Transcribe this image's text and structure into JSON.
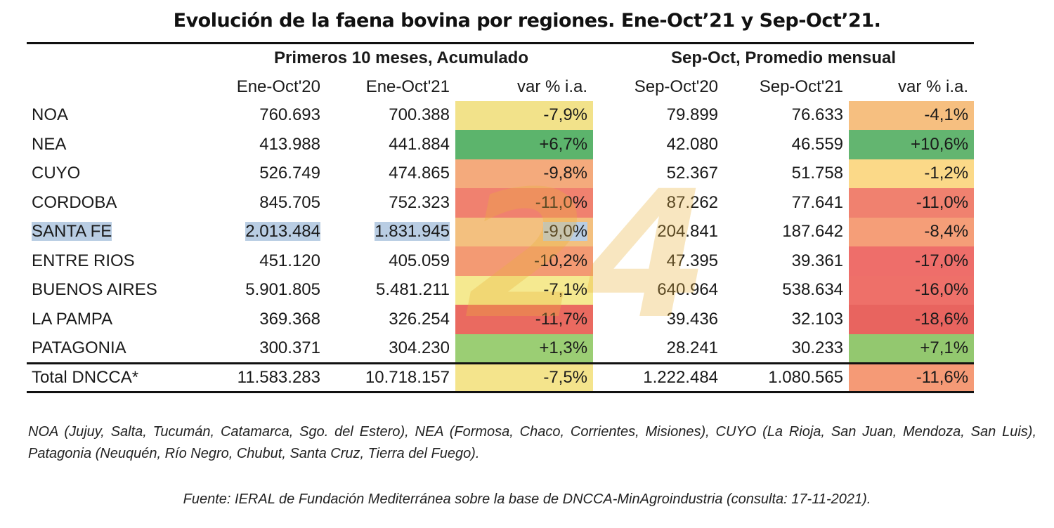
{
  "title": "Evolución de la faena bovina por regiones. Ene-Oct’21 y Sep-Oct’21.",
  "group_headers": {
    "left": "Primeros 10 meses, Acumulado",
    "right": "Sep-Oct, Promedio mensual"
  },
  "column_headers": [
    "Ene-Oct'20",
    "Ene-Oct'21",
    "var % i.a.",
    "Sep-Oct'20",
    "Sep-Oct'21",
    "var % i.a."
  ],
  "rows": [
    {
      "region": "NOA",
      "ene_oct_20": "760.693",
      "ene_oct_21": "700.388",
      "var_acum": "-7,9%",
      "sep_oct_20": "79.899",
      "sep_oct_21": "76.633",
      "var_prom": "-4,1%"
    },
    {
      "region": "NEA",
      "ene_oct_20": "413.988",
      "ene_oct_21": "441.884",
      "var_acum": "+6,7%",
      "sep_oct_20": "42.080",
      "sep_oct_21": "46.559",
      "var_prom": "+10,6%"
    },
    {
      "region": "CUYO",
      "ene_oct_20": "526.749",
      "ene_oct_21": "474.865",
      "var_acum": "-9,8%",
      "sep_oct_20": "52.367",
      "sep_oct_21": "51.758",
      "var_prom": "-1,2%"
    },
    {
      "region": "CORDOBA",
      "ene_oct_20": "845.705",
      "ene_oct_21": "752.323",
      "var_acum": "-11,0%",
      "sep_oct_20": "87.262",
      "sep_oct_21": "77.641",
      "var_prom": "-11,0%"
    },
    {
      "region": "SANTA FE",
      "ene_oct_20": "2.013.484",
      "ene_oct_21": "1.831.945",
      "var_acum": "-9,0%",
      "sep_oct_20": "204.841",
      "sep_oct_21": "187.642",
      "var_prom": "-8,4%"
    },
    {
      "region": "ENTRE RIOS",
      "ene_oct_20": "451.120",
      "ene_oct_21": "405.059",
      "var_acum": "-10,2%",
      "sep_oct_20": "47.395",
      "sep_oct_21": "39.361",
      "var_prom": "-17,0%"
    },
    {
      "region": "BUENOS AIRES",
      "ene_oct_20": "5.901.805",
      "ene_oct_21": "5.481.211",
      "var_acum": "-7,1%",
      "sep_oct_20": "640.964",
      "sep_oct_21": "538.634",
      "var_prom": "-16,0%"
    },
    {
      "region": "LA PAMPA",
      "ene_oct_20": "369.368",
      "ene_oct_21": "326.254",
      "var_acum": "-11,7%",
      "sep_oct_20": "39.436",
      "sep_oct_21": "32.103",
      "var_prom": "-18,6%"
    },
    {
      "region": "PATAGONIA",
      "ene_oct_20": "300.371",
      "ene_oct_21": "304.230",
      "var_acum": "+1,3%",
      "sep_oct_20": "28.241",
      "sep_oct_21": "30.233",
      "var_prom": "+7,1%"
    }
  ],
  "total": {
    "region": "Total DNCCA*",
    "ene_oct_20": "11.583.283",
    "ene_oct_21": "10.718.157",
    "var_acum": "-7,5%",
    "sep_oct_20": "1.222.484",
    "sep_oct_21": "1.080.565",
    "var_prom": "-11,6%"
  },
  "heat_colors": {
    "-7,9%": "#f2e28a",
    "+6,7%": "#5cb46c",
    "-9,8%": "#f4aa7c",
    "-11,0%": "#f0816f",
    "-9,0%": "#f3c07f",
    "-10,2%": "#f39a73",
    "-7,1%": "#f5e990",
    "-11,7%": "#ea6a60",
    "+1,3%": "#9bce74",
    "-7,5%": "#f4e48c",
    "-4,1%": "#f6bf80",
    "+10,6%": "#63b570",
    "-1,2%": "#fbd988",
    "-8,4%": "#f59e78",
    "-17,0%": "#ee6e6a",
    "-16,0%": "#ee7069",
    "-18,6%": "#e8645f",
    "+7,1%": "#93c86f",
    "-11,6%": "#f59a76"
  },
  "highlighted_row": "SANTA FE",
  "notes": "NOA (Jujuy, Salta, Tucumán, Catamarca, Sgo. del Estero), NEA (Formosa, Chaco, Corrientes, Misiones), CUYO (La Rioja, San Juan, Mendoza, San Luis), Patagonia (Neuquén, Río Negro, Chubut, Santa Cruz, Tierra del Fuego).",
  "source": "Fuente: IERAL de Fundación Mediterránea sobre la base de DNCCA-MinAgroindustria (consulta: 17-11-2021).",
  "watermark": "24"
}
